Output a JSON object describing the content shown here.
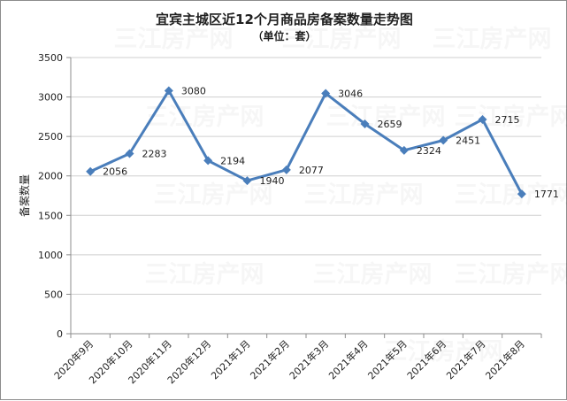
{
  "chart_data": {
    "type": "line",
    "title": "宜宾主城区近12个月商品房备案数量走势图",
    "subtitle": "（单位：套）",
    "xlabel": "",
    "ylabel": "备案数量",
    "categories": [
      "2020年9月",
      "2020年10月",
      "2020年11月",
      "2020年12月",
      "2021年1月",
      "2021年2月",
      "2021年3月",
      "2021年4月",
      "2021年5月",
      "2021年6月",
      "2021年7月",
      "2021年8月"
    ],
    "series": [
      {
        "values": [
          2056,
          2283,
          3080,
          2194,
          1940,
          2077,
          3046,
          2659,
          2324,
          2451,
          2715,
          1771
        ]
      }
    ],
    "ylim": [
      0,
      3500
    ],
    "yticks": [
      0,
      500,
      1000,
      1500,
      2000,
      2500,
      3000,
      3500
    ],
    "grid": true,
    "legend": "none",
    "line_color": "#4a7ebb",
    "marker": "diamond",
    "watermark": "三江房产网"
  }
}
